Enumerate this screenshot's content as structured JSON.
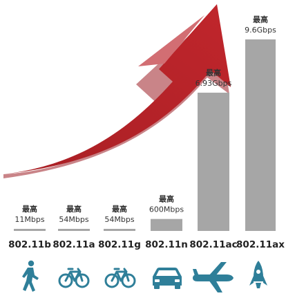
{
  "chart_data": {
    "type": "bar",
    "categories": [
      "802.11b",
      "802.11a",
      "802.11g",
      "802.11n",
      "802.11ac",
      "802.11ax"
    ],
    "caption_prefix": "最高",
    "speed_labels": [
      "11Mbps",
      "54Mbps",
      "54Mbps",
      "600Mbps",
      "6.93Gbps",
      "9.6Gbps"
    ],
    "values_mbps": [
      11,
      54,
      54,
      600,
      6930,
      9600
    ],
    "icons": [
      "walking-person-icon",
      "bicycle-icon",
      "bicycle-icon",
      "car-icon",
      "airplane-icon",
      "rocket-icon"
    ],
    "colors": {
      "bar": "#a6a6a6",
      "icon": "#2f7f99",
      "arrow": "#b4282e",
      "arrow_light": "#c98488",
      "text": "#222222"
    }
  }
}
